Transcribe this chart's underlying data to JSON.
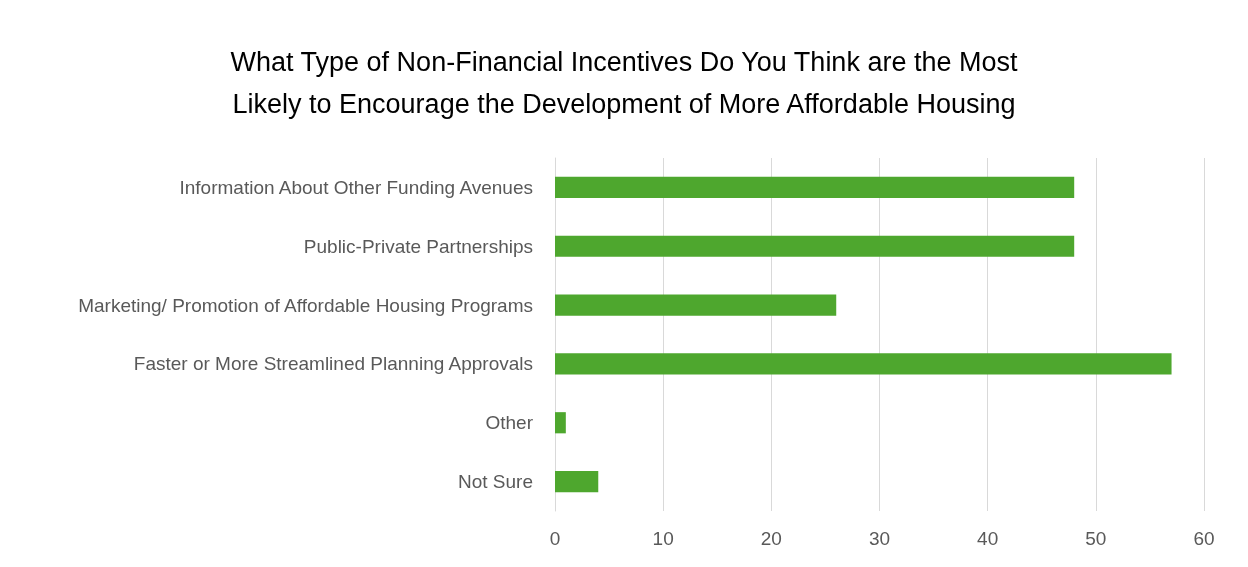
{
  "chart_data": {
    "type": "bar",
    "orientation": "horizontal",
    "title": "What Type of Non-Financial Incentives Do You Think are the Most\nLikely to Encourage the Development of More Affordable Housing",
    "categories": [
      "Information About Other Funding Avenues",
      "Public-Private Partnerships",
      "Marketing/ Promotion of Affordable Housing Programs",
      "Faster or More Streamlined Planning Approvals",
      "Other",
      "Not Sure"
    ],
    "values": [
      48,
      48,
      26,
      57,
      1,
      4
    ],
    "color": "#4ea72e",
    "xlim": [
      0,
      60
    ],
    "xticks": [
      0,
      10,
      20,
      30,
      40,
      50,
      60
    ],
    "grid": "x"
  }
}
